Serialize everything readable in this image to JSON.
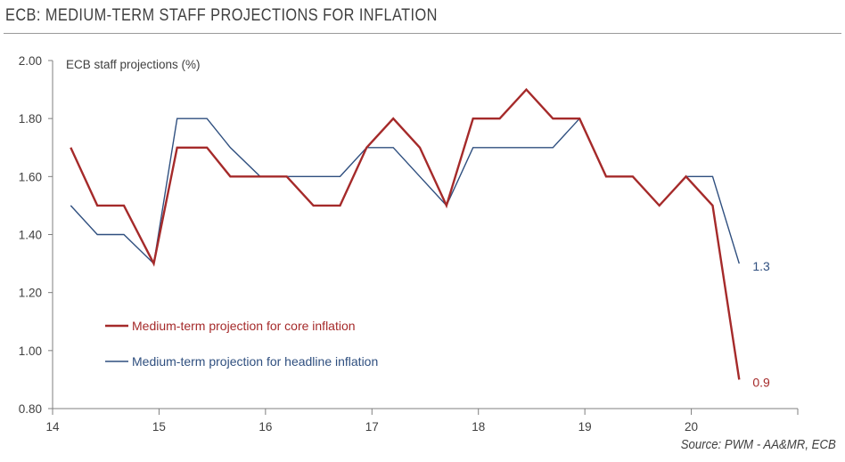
{
  "title": "ECB: MEDIUM-TERM STAFF PROJECTIONS FOR INFLATION",
  "source": "Source: PWM - AA&MR, ECB",
  "colors": {
    "core": "#a52a2a",
    "headline": "#2f4f7f",
    "axis": "#7f7f7f",
    "text": "#404040"
  },
  "chart_data": {
    "type": "line",
    "ylabel": "ECB staff projections (%)",
    "xlabel": "",
    "xlim": [
      14,
      21
    ],
    "ylim": [
      0.8,
      2.0
    ],
    "x_ticks": [
      "14",
      "15",
      "16",
      "17",
      "18",
      "19",
      "20"
    ],
    "y_ticks": [
      "0.80",
      "1.00",
      "1.20",
      "1.40",
      "1.60",
      "1.80",
      "2.00"
    ],
    "x": [
      14.17,
      14.42,
      14.67,
      14.95,
      15.17,
      15.45,
      15.67,
      15.95,
      16.2,
      16.45,
      16.7,
      16.95,
      17.2,
      17.45,
      17.7,
      17.95,
      18.2,
      18.45,
      18.7,
      18.95,
      19.2,
      19.45,
      19.7,
      19.95,
      20.2,
      20.45
    ],
    "series": [
      {
        "name": "Medium-term projection for core inflation",
        "color": "#a52a2a",
        "values": [
          1.7,
          1.5,
          1.5,
          1.3,
          1.7,
          1.7,
          1.6,
          1.6,
          1.6,
          1.5,
          1.5,
          1.7,
          1.8,
          1.7,
          1.5,
          1.8,
          1.8,
          1.9,
          1.8,
          1.8,
          1.6,
          1.6,
          1.5,
          1.6,
          1.5,
          0.9
        ],
        "end_label": "0.9"
      },
      {
        "name": "Medium-term projection for headline inflation",
        "color": "#2f4f7f",
        "values": [
          1.5,
          1.4,
          1.4,
          1.3,
          1.8,
          1.8,
          1.7,
          1.6,
          1.6,
          1.6,
          1.6,
          1.7,
          1.7,
          1.6,
          1.5,
          1.7,
          1.7,
          1.7,
          1.7,
          1.8,
          1.6,
          1.6,
          1.5,
          1.6,
          1.6,
          1.3
        ],
        "end_label": "1.3"
      }
    ],
    "legend": "inside-bottom-left",
    "grid": false
  }
}
